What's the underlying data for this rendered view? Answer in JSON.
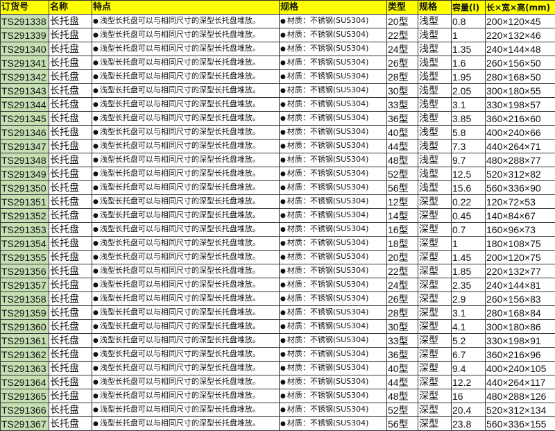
{
  "header": [
    "订货号",
    "名称",
    "特点",
    "规格",
    "类型",
    "规格",
    "容量(l)",
    "长×宽×高(mm)"
  ],
  "bullet": "●",
  "colors": {
    "header_bg": "#ffff00",
    "id_col_bg": "#c6e0b4"
  },
  "common": {
    "name": "长托盘",
    "feature": "浅型长托盘可以与相同尺寸的深型长托盘堆放。",
    "spec": "材质：不锈钢(SUS304)"
  },
  "rows": [
    {
      "id": "TS291338",
      "type": "20型",
      "depth": "浅型",
      "cap": "0.8",
      "dim": "200×120×45"
    },
    {
      "id": "TS291339",
      "type": "22型",
      "depth": "浅型",
      "cap": "1",
      "dim": "220×132×46"
    },
    {
      "id": "TS291340",
      "type": "24型",
      "depth": "浅型",
      "cap": "1.35",
      "dim": "240×144×48"
    },
    {
      "id": "TS291341",
      "type": "26型",
      "depth": "浅型",
      "cap": "1.6",
      "dim": "260×156×50"
    },
    {
      "id": "TS291342",
      "type": "28型",
      "depth": "浅型",
      "cap": "1.95",
      "dim": "280×168×50"
    },
    {
      "id": "TS291343",
      "type": "30型",
      "depth": "浅型",
      "cap": "2.05",
      "dim": "300×180×55"
    },
    {
      "id": "TS291344",
      "type": "33型",
      "depth": "浅型",
      "cap": "3.1",
      "dim": "330×198×57"
    },
    {
      "id": "TS291345",
      "type": "36型",
      "depth": "浅型",
      "cap": "3.85",
      "dim": "360×216×60"
    },
    {
      "id": "TS291346",
      "type": "40型",
      "depth": "浅型",
      "cap": "5.8",
      "dim": "400×240×66"
    },
    {
      "id": "TS291347",
      "type": "44型",
      "depth": "浅型",
      "cap": "7.3",
      "dim": "440×264×71"
    },
    {
      "id": "TS291348",
      "type": "48型",
      "depth": "浅型",
      "cap": "9.7",
      "dim": "480×288×77"
    },
    {
      "id": "TS291349",
      "type": "52型",
      "depth": "浅型",
      "cap": "12.5",
      "dim": "520×312×82"
    },
    {
      "id": "TS291350",
      "type": "56型",
      "depth": "浅型",
      "cap": "15.6",
      "dim": "560×336×90"
    },
    {
      "id": "TS291351",
      "type": "12型",
      "depth": "深型",
      "cap": "0.22",
      "dim": "120×72×53"
    },
    {
      "id": "TS291352",
      "type": "14型",
      "depth": "深型",
      "cap": "0.45",
      "dim": "140×84×67"
    },
    {
      "id": "TS291353",
      "type": "16型",
      "depth": "深型",
      "cap": "0.7",
      "dim": "160×96×73"
    },
    {
      "id": "TS291354",
      "type": "18型",
      "depth": "深型",
      "cap": "1",
      "dim": "180×108×75"
    },
    {
      "id": "TS291355",
      "type": "20型",
      "depth": "深型",
      "cap": "1.45",
      "dim": "200×120×75"
    },
    {
      "id": "TS291356",
      "type": "22型",
      "depth": "深型",
      "cap": "1.85",
      "dim": "220×132×77"
    },
    {
      "id": "TS291357",
      "type": "24型",
      "depth": "深型",
      "cap": "2.35",
      "dim": "240×144×81"
    },
    {
      "id": "TS291358",
      "type": "26型",
      "depth": "深型",
      "cap": "2.9",
      "dim": "260×156×83"
    },
    {
      "id": "TS291359",
      "type": "28型",
      "depth": "深型",
      "cap": "3.1",
      "dim": "280×168×84"
    },
    {
      "id": "TS291360",
      "type": "30型",
      "depth": "深型",
      "cap": "4.1",
      "dim": "300×180×86"
    },
    {
      "id": "TS291361",
      "type": "33型",
      "depth": "深型",
      "cap": "5.2",
      "dim": "330×198×91"
    },
    {
      "id": "TS291362",
      "type": "36型",
      "depth": "深型",
      "cap": "6.7",
      "dim": "360×216×96"
    },
    {
      "id": "TS291363",
      "type": "40型",
      "depth": "深型",
      "cap": "9.4",
      "dim": "400×240×105"
    },
    {
      "id": "TS291364",
      "type": "44型",
      "depth": "深型",
      "cap": "12.2",
      "dim": "440×264×117"
    },
    {
      "id": "TS291365",
      "type": "48型",
      "depth": "深型",
      "cap": "16",
      "dim": "480×288×126"
    },
    {
      "id": "TS291366",
      "type": "52型",
      "depth": "深型",
      "cap": "20.4",
      "dim": "520×312×134"
    },
    {
      "id": "TS291367",
      "type": "56型",
      "depth": "深型",
      "cap": "23.8",
      "dim": "560×336×155"
    }
  ]
}
